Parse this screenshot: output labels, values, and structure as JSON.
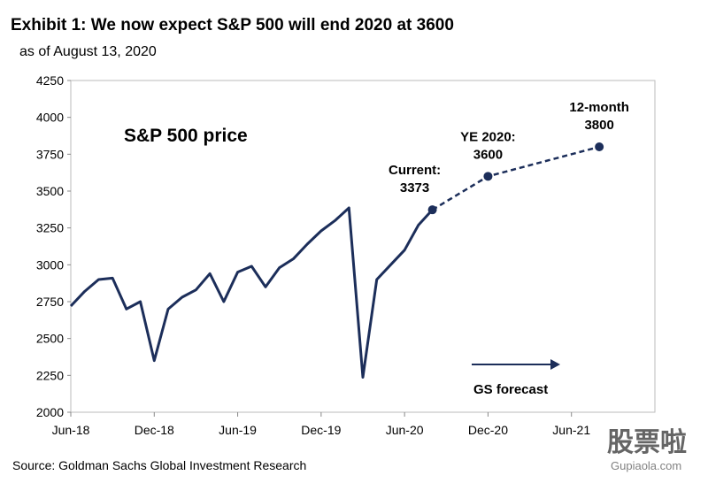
{
  "chart_data": {
    "type": "line",
    "title": "Exhibit 1: We now expect S&P 500 will end 2020 at 3600",
    "subtitle": "as of August 13, 2020",
    "inner_label": "S&P 500 price",
    "forecast_label": "GS forecast",
    "source": "Source: Goldman Sachs Global Investment Research",
    "watermark": [
      "股票啦",
      "Gupiaola.com"
    ],
    "xlim": [
      "2018-06",
      "2021-12"
    ],
    "xticks": [
      {
        "value": "2018-06",
        "label": "Jun-18"
      },
      {
        "value": "2018-12",
        "label": "Dec-18"
      },
      {
        "value": "2019-06",
        "label": "Jun-19"
      },
      {
        "value": "2019-12",
        "label": "Dec-19"
      },
      {
        "value": "2020-06",
        "label": "Jun-20"
      },
      {
        "value": "2020-12",
        "label": "Dec-20"
      },
      {
        "value": "2021-06",
        "label": "Jun-21"
      }
    ],
    "ylim": [
      2000,
      4250
    ],
    "yticks": [
      2000,
      2250,
      2500,
      2750,
      3000,
      3250,
      3500,
      3750,
      4000,
      4250
    ],
    "series": [
      {
        "name": "S&P 500 price",
        "color": "#1c2e5a",
        "style": "solid",
        "x": [
          "2018-06",
          "2018-07",
          "2018-08",
          "2018-09",
          "2018-10",
          "2018-11",
          "2018-12",
          "2019-01",
          "2019-02",
          "2019-03",
          "2019-04",
          "2019-05",
          "2019-06",
          "2019-07",
          "2019-08",
          "2019-09",
          "2019-10",
          "2019-11",
          "2019-12",
          "2020-01",
          "2020-02",
          "2020-03",
          "2020-04",
          "2020-05",
          "2020-06",
          "2020-07",
          "2020-08"
        ],
        "values": [
          2720,
          2820,
          2900,
          2910,
          2700,
          2750,
          2350,
          2700,
          2780,
          2830,
          2940,
          2750,
          2950,
          2990,
          2850,
          2980,
          3040,
          3140,
          3230,
          3300,
          3386,
          2237,
          2900,
          3000,
          3100,
          3270,
          3373
        ]
      },
      {
        "name": "GS forecast",
        "color": "#1c2e5a",
        "style": "dashed",
        "x": [
          "2020-08",
          "2020-12",
          "2021-08"
        ],
        "values": [
          3373,
          3600,
          3800
        ],
        "annotations": [
          "Current:",
          "YE 2020:",
          "12-month"
        ],
        "value_labels": [
          "3373",
          "3600",
          "3800"
        ]
      }
    ]
  }
}
